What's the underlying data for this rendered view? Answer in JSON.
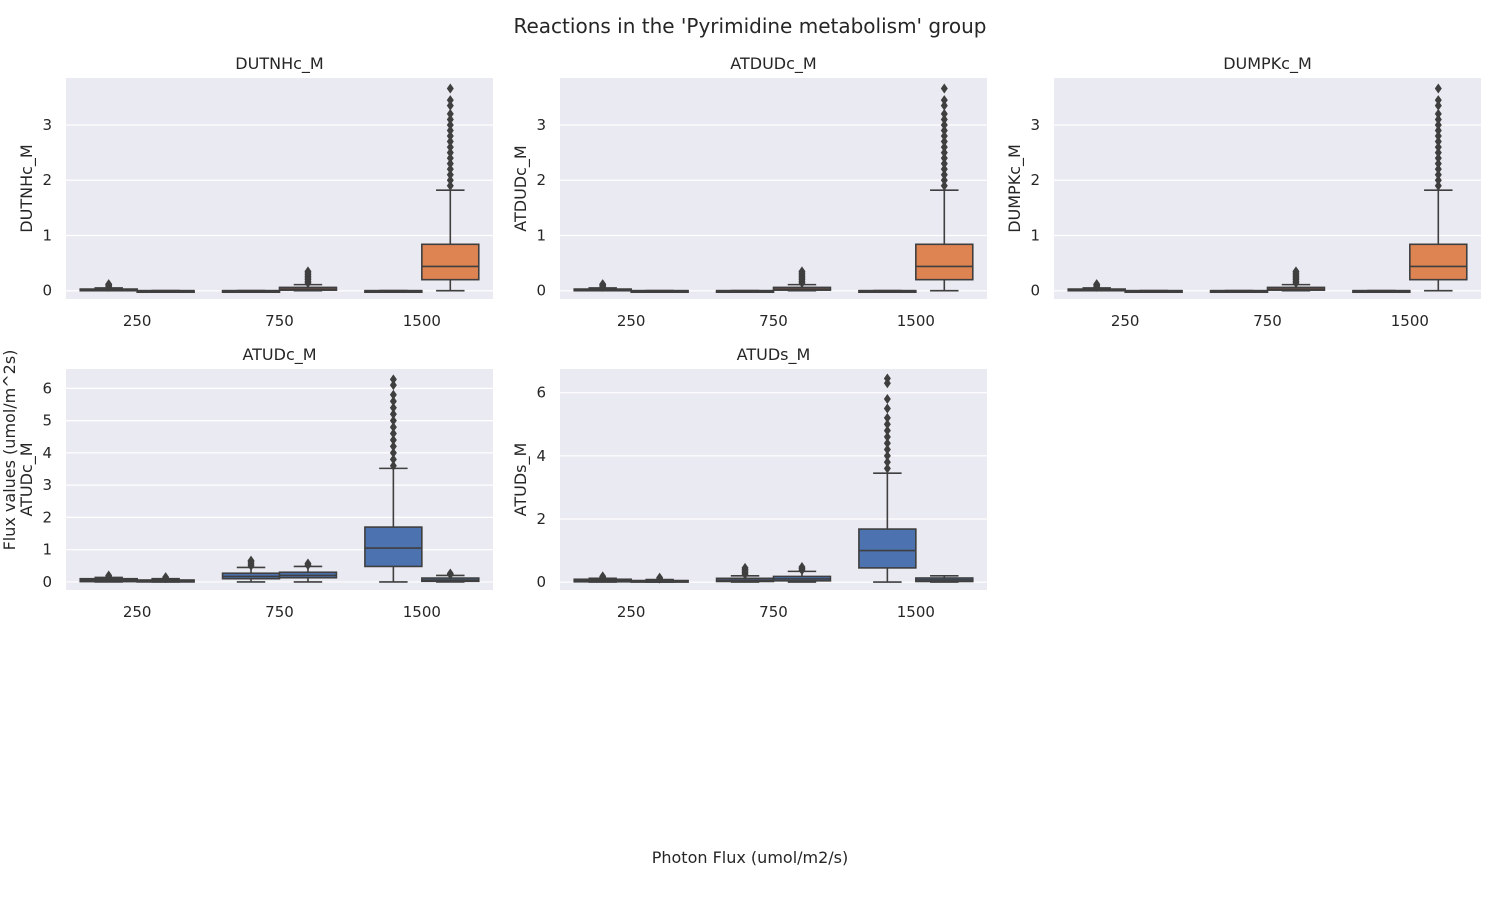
{
  "figure": {
    "title": "Reactions in the 'Pyrimidine metabolism' group",
    "xlabel": "Photon Flux (umol/m2/s)",
    "ylabel": "Flux values (umol/m^2s)"
  },
  "colors": {
    "plot_bg": "#eaeaf2",
    "grid": "#ffffff",
    "edge": "#3f3f3f",
    "blue": "#4c72b0",
    "orange": "#dd8452",
    "text": "#262626"
  },
  "chart_data": [
    {
      "type": "box",
      "title": "DUTNHc_M",
      "ylabel": "DUTNHc_M",
      "categories": [
        "250",
        "750",
        "1500"
      ],
      "ylim": [
        -0.15,
        3.85
      ],
      "yticks": [
        0,
        1,
        2,
        3
      ],
      "grid": true,
      "series": [
        {
          "color": "orange",
          "boxes": [
            {
              "cat": 0,
              "slot": 0,
              "q1": 0.0,
              "median": 0.01,
              "q3": 0.03,
              "whislo": 0.0,
              "whishi": 0.05,
              "outliers": [
                0.07,
                0.09,
                0.11,
                0.12
              ]
            },
            {
              "cat": 0,
              "slot": 1,
              "q1": 0.0,
              "median": 0.0,
              "q3": 0.0,
              "whislo": 0.0,
              "whishi": 0.0,
              "outliers": []
            },
            {
              "cat": 1,
              "slot": 0,
              "q1": 0.0,
              "median": 0.0,
              "q3": 0.0,
              "whislo": 0.0,
              "whishi": 0.0,
              "outliers": []
            },
            {
              "cat": 1,
              "slot": 1,
              "q1": 0.01,
              "median": 0.03,
              "q3": 0.06,
              "whislo": 0.0,
              "whishi": 0.11,
              "outliers": [
                0.14,
                0.17,
                0.2,
                0.23,
                0.26,
                0.29,
                0.32,
                0.35
              ]
            },
            {
              "cat": 2,
              "slot": 0,
              "q1": 0.0,
              "median": 0.0,
              "q3": 0.0,
              "whislo": 0.0,
              "whishi": 0.0,
              "outliers": []
            },
            {
              "cat": 2,
              "slot": 1,
              "q1": 0.2,
              "median": 0.44,
              "q3": 0.84,
              "whislo": 0.0,
              "whishi": 1.82,
              "outliers": [
                1.9,
                2.0,
                2.1,
                2.2,
                2.3,
                2.4,
                2.5,
                2.6,
                2.7,
                2.8,
                2.9,
                3.0,
                3.1,
                3.2,
                3.35,
                3.45,
                3.66
              ]
            }
          ]
        }
      ]
    },
    {
      "type": "box",
      "title": "ATDUDc_M",
      "ylabel": "ATDUDc_M",
      "categories": [
        "250",
        "750",
        "1500"
      ],
      "ylim": [
        -0.15,
        3.85
      ],
      "yticks": [
        0,
        1,
        2,
        3
      ],
      "grid": true,
      "series": [
        {
          "color": "orange",
          "boxes": [
            {
              "cat": 0,
              "slot": 0,
              "q1": 0.0,
              "median": 0.01,
              "q3": 0.03,
              "whislo": 0.0,
              "whishi": 0.05,
              "outliers": [
                0.07,
                0.09,
                0.11,
                0.12
              ]
            },
            {
              "cat": 0,
              "slot": 1,
              "q1": 0.0,
              "median": 0.0,
              "q3": 0.0,
              "whislo": 0.0,
              "whishi": 0.0,
              "outliers": []
            },
            {
              "cat": 1,
              "slot": 0,
              "q1": 0.0,
              "median": 0.0,
              "q3": 0.0,
              "whislo": 0.0,
              "whishi": 0.0,
              "outliers": []
            },
            {
              "cat": 1,
              "slot": 1,
              "q1": 0.01,
              "median": 0.03,
              "q3": 0.06,
              "whislo": 0.0,
              "whishi": 0.11,
              "outliers": [
                0.14,
                0.17,
                0.2,
                0.23,
                0.26,
                0.29,
                0.32,
                0.35
              ]
            },
            {
              "cat": 2,
              "slot": 0,
              "q1": 0.0,
              "median": 0.0,
              "q3": 0.0,
              "whislo": 0.0,
              "whishi": 0.0,
              "outliers": []
            },
            {
              "cat": 2,
              "slot": 1,
              "q1": 0.2,
              "median": 0.44,
              "q3": 0.84,
              "whislo": 0.0,
              "whishi": 1.82,
              "outliers": [
                1.9,
                2.0,
                2.1,
                2.2,
                2.3,
                2.4,
                2.5,
                2.6,
                2.7,
                2.8,
                2.9,
                3.0,
                3.1,
                3.2,
                3.35,
                3.45,
                3.66
              ]
            }
          ]
        }
      ]
    },
    {
      "type": "box",
      "title": "DUMPKc_M",
      "ylabel": "DUMPKc_M",
      "categories": [
        "250",
        "750",
        "1500"
      ],
      "ylim": [
        -0.15,
        3.85
      ],
      "yticks": [
        0,
        1,
        2,
        3
      ],
      "grid": true,
      "series": [
        {
          "color": "orange",
          "boxes": [
            {
              "cat": 0,
              "slot": 0,
              "q1": 0.0,
              "median": 0.01,
              "q3": 0.03,
              "whislo": 0.0,
              "whishi": 0.05,
              "outliers": [
                0.07,
                0.09,
                0.11,
                0.12
              ]
            },
            {
              "cat": 0,
              "slot": 1,
              "q1": 0.0,
              "median": 0.0,
              "q3": 0.0,
              "whislo": 0.0,
              "whishi": 0.0,
              "outliers": []
            },
            {
              "cat": 1,
              "slot": 0,
              "q1": 0.0,
              "median": 0.0,
              "q3": 0.0,
              "whislo": 0.0,
              "whishi": 0.0,
              "outliers": []
            },
            {
              "cat": 1,
              "slot": 1,
              "q1": 0.01,
              "median": 0.03,
              "q3": 0.06,
              "whislo": 0.0,
              "whishi": 0.11,
              "outliers": [
                0.14,
                0.17,
                0.2,
                0.23,
                0.26,
                0.29,
                0.32,
                0.35
              ]
            },
            {
              "cat": 2,
              "slot": 0,
              "q1": 0.0,
              "median": 0.0,
              "q3": 0.0,
              "whislo": 0.0,
              "whishi": 0.0,
              "outliers": []
            },
            {
              "cat": 2,
              "slot": 1,
              "q1": 0.2,
              "median": 0.44,
              "q3": 0.84,
              "whislo": 0.0,
              "whishi": 1.82,
              "outliers": [
                1.9,
                2.0,
                2.1,
                2.2,
                2.3,
                2.4,
                2.5,
                2.6,
                2.7,
                2.8,
                2.9,
                3.0,
                3.1,
                3.2,
                3.35,
                3.45,
                3.66
              ]
            }
          ]
        }
      ]
    },
    {
      "type": "box",
      "title": "ATUDc_M",
      "ylabel": "ATUDc_M",
      "categories": [
        "250",
        "750",
        "1500"
      ],
      "ylim": [
        -0.25,
        6.6
      ],
      "yticks": [
        0,
        1,
        2,
        3,
        4,
        5,
        6
      ],
      "grid": true,
      "series": [
        {
          "color": "blue",
          "boxes": [
            {
              "cat": 0,
              "slot": 0,
              "q1": 0.01,
              "median": 0.05,
              "q3": 0.1,
              "whislo": 0.0,
              "whishi": 0.14,
              "outliers": [
                0.17,
                0.2
              ]
            },
            {
              "cat": 0,
              "slot": 1,
              "q1": 0.0,
              "median": 0.02,
              "q3": 0.06,
              "whislo": 0.0,
              "whishi": 0.1,
              "outliers": [
                0.12,
                0.15
              ]
            },
            {
              "cat": 1,
              "slot": 0,
              "q1": 0.1,
              "median": 0.17,
              "q3": 0.27,
              "whislo": 0.0,
              "whishi": 0.45,
              "outliers": [
                0.5,
                0.56,
                0.62,
                0.66
              ]
            },
            {
              "cat": 1,
              "slot": 1,
              "q1": 0.13,
              "median": 0.2,
              "q3": 0.3,
              "whislo": 0.0,
              "whishi": 0.48,
              "outliers": [
                0.52,
                0.57
              ]
            },
            {
              "cat": 2,
              "slot": 0,
              "q1": 0.48,
              "median": 1.05,
              "q3": 1.7,
              "whislo": 0.0,
              "whishi": 3.52,
              "outliers": [
                3.6,
                3.8,
                4.0,
                4.2,
                4.4,
                4.6,
                4.8,
                5.0,
                5.2,
                5.4,
                5.6,
                5.8,
                6.1,
                6.28
              ]
            },
            {
              "cat": 2,
              "slot": 1,
              "q1": 0.02,
              "median": 0.06,
              "q3": 0.12,
              "whislo": 0.0,
              "whishi": 0.2,
              "outliers": [
                0.23,
                0.26
              ]
            }
          ]
        }
      ]
    },
    {
      "type": "box",
      "title": "ATUDs_M",
      "ylabel": "ATUDs_M",
      "categories": [
        "250",
        "750",
        "1500"
      ],
      "ylim": [
        -0.25,
        6.75
      ],
      "yticks": [
        0,
        2,
        4,
        6
      ],
      "grid": true,
      "series": [
        {
          "color": "blue",
          "boxes": [
            {
              "cat": 0,
              "slot": 0,
              "q1": 0.01,
              "median": 0.04,
              "q3": 0.09,
              "whislo": 0.0,
              "whishi": 0.12,
              "outliers": [
                0.15,
                0.18
              ]
            },
            {
              "cat": 0,
              "slot": 1,
              "q1": 0.0,
              "median": 0.02,
              "q3": 0.05,
              "whislo": 0.0,
              "whishi": 0.08,
              "outliers": [
                0.11,
                0.14
              ]
            },
            {
              "cat": 1,
              "slot": 0,
              "q1": 0.02,
              "median": 0.06,
              "q3": 0.12,
              "whislo": 0.0,
              "whishi": 0.2,
              "outliers": [
                0.25,
                0.3,
                0.35,
                0.4,
                0.45
              ]
            },
            {
              "cat": 1,
              "slot": 1,
              "q1": 0.04,
              "median": 0.1,
              "q3": 0.18,
              "whislo": 0.0,
              "whishi": 0.34,
              "outliers": [
                0.38,
                0.43,
                0.48
              ]
            },
            {
              "cat": 2,
              "slot": 0,
              "q1": 0.45,
              "median": 1.0,
              "q3": 1.68,
              "whislo": 0.0,
              "whishi": 3.45,
              "outliers": [
                3.6,
                3.8,
                4.0,
                4.2,
                4.4,
                4.6,
                4.8,
                5.0,
                5.2,
                5.5,
                5.8,
                6.3,
                6.45
              ]
            },
            {
              "cat": 2,
              "slot": 1,
              "q1": 0.02,
              "median": 0.07,
              "q3": 0.13,
              "whislo": 0.0,
              "whishi": 0.2,
              "outliers": []
            }
          ]
        }
      ]
    }
  ]
}
